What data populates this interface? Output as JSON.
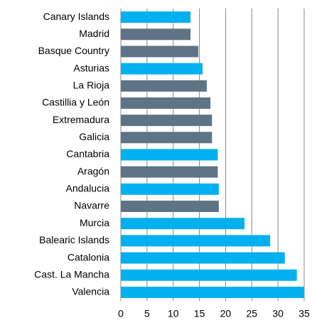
{
  "chart_data": {
    "type": "barh",
    "categories": [
      "Canary Islands",
      "Madrid",
      "Basque Country",
      "Asturias",
      "La Rioja",
      "Castillia y León",
      "Extremadura",
      "Galicia",
      "Cantabria",
      "Aragón",
      "Andalucia",
      "Navarre",
      "Murcia",
      "Balearic Islands",
      "Catalonia",
      "Cast. La Mancha",
      "Valencia"
    ],
    "values": [
      13.3,
      13.3,
      14.8,
      15.6,
      16.4,
      17.1,
      17.4,
      17.4,
      18.5,
      18.5,
      18.7,
      18.7,
      23.6,
      28.5,
      31.3,
      33.6,
      35
    ],
    "colors": [
      "#00b0f0",
      "#5f7386",
      "#5f7386",
      "#00b0f0",
      "#5f7386",
      "#5f7386",
      "#5f7386",
      "#5f7386",
      "#00b0f0",
      "#5f7386",
      "#00b0f0",
      "#5f7386",
      "#00b0f0",
      "#00b0f0",
      "#00b0f0",
      "#00b0f0",
      "#00b0f0"
    ],
    "xlim": [
      0,
      35
    ],
    "xticks": [
      0,
      5,
      10,
      15,
      20,
      25,
      30,
      35
    ],
    "grid": true
  }
}
